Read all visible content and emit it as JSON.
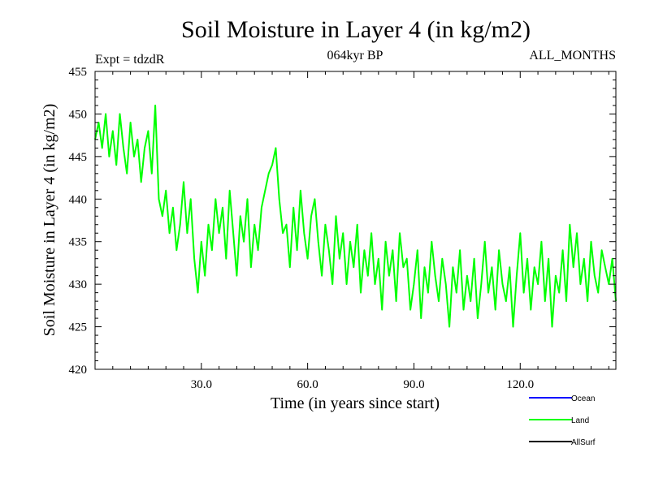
{
  "chart_data": {
    "type": "line",
    "title": "Soil Moisture in Layer 4 (in kg/m2)",
    "subtitle": "064kyr BP",
    "experiment_label": "Expt = tdzdR",
    "months_label": "ALL_MONTHS",
    "xlabel": "Time (in years since start)",
    "ylabel": "Soil Moisture in Layer 4 (in kg/m2)",
    "xlim": [
      0,
      147
    ],
    "ylim": [
      420,
      455
    ],
    "x_ticks": [
      30,
      60,
      90,
      120
    ],
    "x_tick_labels": [
      "30.0",
      "60.0",
      "90.0",
      "120.0"
    ],
    "y_ticks": [
      420,
      425,
      430,
      435,
      440,
      445,
      450,
      455
    ],
    "y_tick_labels": [
      "420",
      "425",
      "430",
      "435",
      "440",
      "445",
      "450",
      "455"
    ],
    "grid": false,
    "legend": [
      {
        "name": "Ocean",
        "color": "#0000ff"
      },
      {
        "name": "Land",
        "color": "#00ff00"
      },
      {
        "name": "AllSurf",
        "color": "#000000"
      }
    ],
    "series": [
      {
        "name": "Land",
        "color": "#00ff00",
        "x": [
          0,
          1,
          2,
          3,
          4,
          5,
          6,
          7,
          8,
          9,
          10,
          11,
          12,
          13,
          14,
          15,
          16,
          17,
          18,
          19,
          20,
          21,
          22,
          23,
          24,
          25,
          26,
          27,
          28,
          29,
          30,
          31,
          32,
          33,
          34,
          35,
          36,
          37,
          38,
          39,
          40,
          41,
          42,
          43,
          44,
          45,
          46,
          47,
          48,
          49,
          50,
          51,
          52,
          53,
          54,
          55,
          56,
          57,
          58,
          59,
          60,
          61,
          62,
          63,
          64,
          65,
          66,
          67,
          68,
          69,
          70,
          71,
          72,
          73,
          74,
          75,
          76,
          77,
          78,
          79,
          80,
          81,
          82,
          83,
          84,
          85,
          86,
          87,
          88,
          89,
          90,
          91,
          92,
          93,
          94,
          95,
          96,
          97,
          98,
          99,
          100,
          101,
          102,
          103,
          104,
          105,
          106,
          107,
          108,
          109,
          110,
          111,
          112,
          113,
          114,
          115,
          116,
          117,
          118,
          119,
          120,
          121,
          122,
          123,
          124,
          125,
          126,
          127,
          128,
          129,
          130,
          131,
          132,
          133,
          134,
          135,
          136,
          137,
          138,
          139,
          140,
          141,
          142,
          143,
          144,
          145,
          146,
          147
        ],
        "values": [
          447,
          449,
          446,
          450,
          445,
          448,
          444,
          450,
          446,
          443,
          449,
          445,
          447,
          442,
          446,
          448,
          443,
          451,
          440,
          438,
          441,
          436,
          439,
          434,
          437,
          442,
          436,
          440,
          433,
          429,
          435,
          431,
          437,
          434,
          440,
          436,
          439,
          433,
          441,
          436,
          431,
          438,
          435,
          440,
          432,
          437,
          434,
          439,
          441,
          443,
          444,
          446,
          440,
          436,
          437,
          432,
          439,
          434,
          441,
          436,
          433,
          438,
          440,
          435,
          431,
          437,
          434,
          430,
          438,
          433,
          436,
          430,
          435,
          432,
          437,
          429,
          434,
          431,
          436,
          430,
          433,
          427,
          435,
          431,
          434,
          428,
          436,
          432,
          433,
          427,
          430,
          434,
          426,
          432,
          429,
          435,
          431,
          428,
          433,
          430,
          425,
          432,
          429,
          434,
          427,
          431,
          428,
          433,
          426,
          430,
          435,
          429,
          432,
          427,
          434,
          430,
          428,
          432,
          425,
          431,
          436,
          429,
          433,
          427,
          432,
          430,
          435,
          428,
          433,
          425,
          431,
          429,
          434,
          428,
          437,
          432,
          436,
          430,
          433,
          428,
          435,
          431,
          429,
          434,
          432,
          430,
          433,
          428
        ]
      }
    ]
  }
}
